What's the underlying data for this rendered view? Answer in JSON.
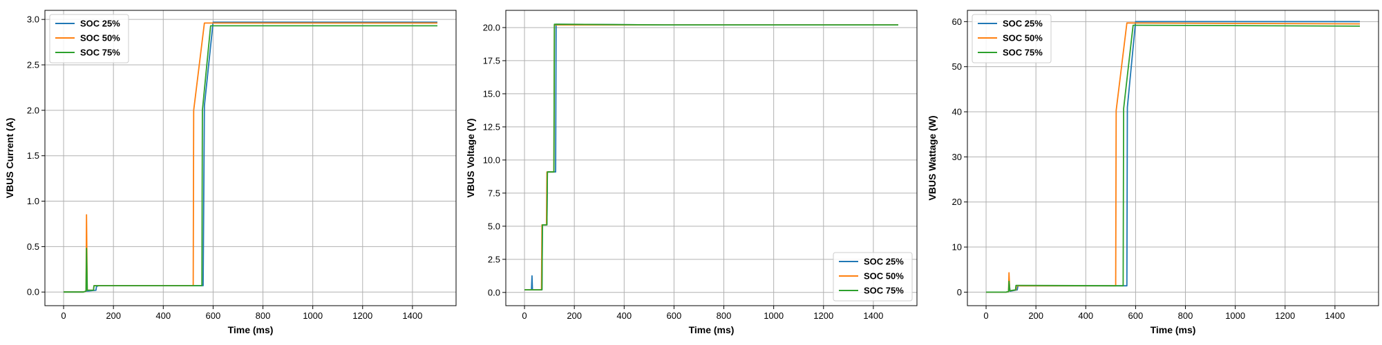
{
  "chart_data": [
    {
      "type": "line",
      "xlabel": "Time (ms)",
      "ylabel": "VBUS Current (A)",
      "xlim": [
        -75,
        1575
      ],
      "ylim": [
        -0.15,
        3.1
      ],
      "xticks": [
        0,
        200,
        400,
        600,
        800,
        1000,
        1200,
        1400
      ],
      "yticks": [
        0.0,
        0.5,
        1.0,
        1.5,
        2.0,
        2.5,
        3.0
      ],
      "ytick_labels": [
        "0.0",
        "0.5",
        "1.0",
        "1.5",
        "2.0",
        "2.5",
        "3.0"
      ],
      "grid": true,
      "legend_position": "top-left",
      "series": [
        {
          "name": "SOC 25%",
          "color": "#1f77b4",
          "x": [
            0,
            80,
            90,
            91,
            93,
            95,
            130,
            132,
            140,
            560,
            565,
            600,
            1500
          ],
          "y": [
            0,
            0,
            0.01,
            0.05,
            0.01,
            0.01,
            0.02,
            0.06,
            0.07,
            0.07,
            2.05,
            2.97,
            2.97
          ]
        },
        {
          "name": "SOC 50%",
          "color": "#ff7f0e",
          "x": [
            0,
            80,
            90,
            92,
            95,
            120,
            122,
            130,
            520,
            522,
            565,
            1500
          ],
          "y": [
            0,
            0,
            0.01,
            0.85,
            0.02,
            0.02,
            0.07,
            0.07,
            0.07,
            2.0,
            2.96,
            2.96
          ]
        },
        {
          "name": "SOC 75%",
          "color": "#2ca02c",
          "x": [
            0,
            80,
            90,
            92,
            95,
            120,
            122,
            130,
            555,
            557,
            590,
            1500
          ],
          "y": [
            0,
            0,
            0.01,
            0.48,
            0.02,
            0.02,
            0.07,
            0.07,
            0.07,
            2.0,
            2.93,
            2.93
          ]
        }
      ]
    },
    {
      "type": "line",
      "xlabel": "Time (ms)",
      "ylabel": "VBUS Voltage (V)",
      "xlim": [
        -75,
        1575
      ],
      "ylim": [
        -1.0,
        21.3
      ],
      "xticks": [
        0,
        200,
        400,
        600,
        800,
        1000,
        1200,
        1400
      ],
      "yticks": [
        0.0,
        2.5,
        5.0,
        7.5,
        10.0,
        12.5,
        15.0,
        17.5,
        20.0
      ],
      "ytick_labels": [
        "0.0",
        "2.5",
        "5.0",
        "7.5",
        "10.0",
        "12.5",
        "15.0",
        "17.5",
        "20.0"
      ],
      "grid": true,
      "legend_position": "bottom-right",
      "series": [
        {
          "name": "SOC 25%",
          "color": "#1f77b4",
          "x": [
            0,
            28,
            30,
            32,
            70,
            72,
            90,
            92,
            125,
            127,
            560,
            1500
          ],
          "y": [
            0.2,
            0.2,
            1.25,
            0.2,
            0.2,
            5.1,
            5.1,
            9.1,
            9.1,
            20.25,
            20.2,
            20.2
          ]
        },
        {
          "name": "SOC 50%",
          "color": "#ff7f0e",
          "x": [
            0,
            68,
            70,
            88,
            90,
            118,
            120,
            560,
            1500
          ],
          "y": [
            0.2,
            0.2,
            5.1,
            5.1,
            9.1,
            9.1,
            20.2,
            20.2,
            20.2
          ]
        },
        {
          "name": "SOC 75%",
          "color": "#2ca02c",
          "x": [
            0,
            70,
            72,
            90,
            92,
            118,
            120,
            560,
            1500
          ],
          "y": [
            0.2,
            0.2,
            5.1,
            5.1,
            9.1,
            9.1,
            20.25,
            20.2,
            20.2
          ]
        }
      ]
    },
    {
      "type": "line",
      "xlabel": "Time (ms)",
      "ylabel": "VBUS Wattage (W)",
      "xlim": [
        -75,
        1575
      ],
      "ylim": [
        -3.0,
        62.5
      ],
      "xticks": [
        0,
        200,
        400,
        600,
        800,
        1000,
        1200,
        1400
      ],
      "yticks": [
        0,
        10,
        20,
        30,
        40,
        50,
        60
      ],
      "ytick_labels": [
        "0",
        "10",
        "20",
        "30",
        "40",
        "50",
        "60"
      ],
      "grid": true,
      "legend_position": "top-left",
      "series": [
        {
          "name": "SOC 25%",
          "color": "#1f77b4",
          "x": [
            0,
            80,
            90,
            93,
            96,
            125,
            128,
            140,
            565,
            567,
            600,
            1500
          ],
          "y": [
            0,
            0,
            0.1,
            2.0,
            0.2,
            0.5,
            1.4,
            1.4,
            1.4,
            41,
            60.0,
            60.0
          ]
        },
        {
          "name": "SOC 50%",
          "color": "#ff7f0e",
          "x": [
            0,
            80,
            90,
            92,
            95,
            120,
            122,
            130,
            520,
            522,
            565,
            1500
          ],
          "y": [
            0,
            0,
            0.1,
            4.3,
            0.3,
            0.5,
            1.4,
            1.4,
            1.4,
            40.3,
            59.7,
            59.5
          ]
        },
        {
          "name": "SOC 75%",
          "color": "#2ca02c",
          "x": [
            0,
            80,
            90,
            92,
            95,
            118,
            120,
            130,
            550,
            552,
            590,
            1500
          ],
          "y": [
            0,
            0,
            0.1,
            2.4,
            0.3,
            0.5,
            1.5,
            1.5,
            1.4,
            40.7,
            59.2,
            59.0
          ]
        }
      ]
    }
  ]
}
